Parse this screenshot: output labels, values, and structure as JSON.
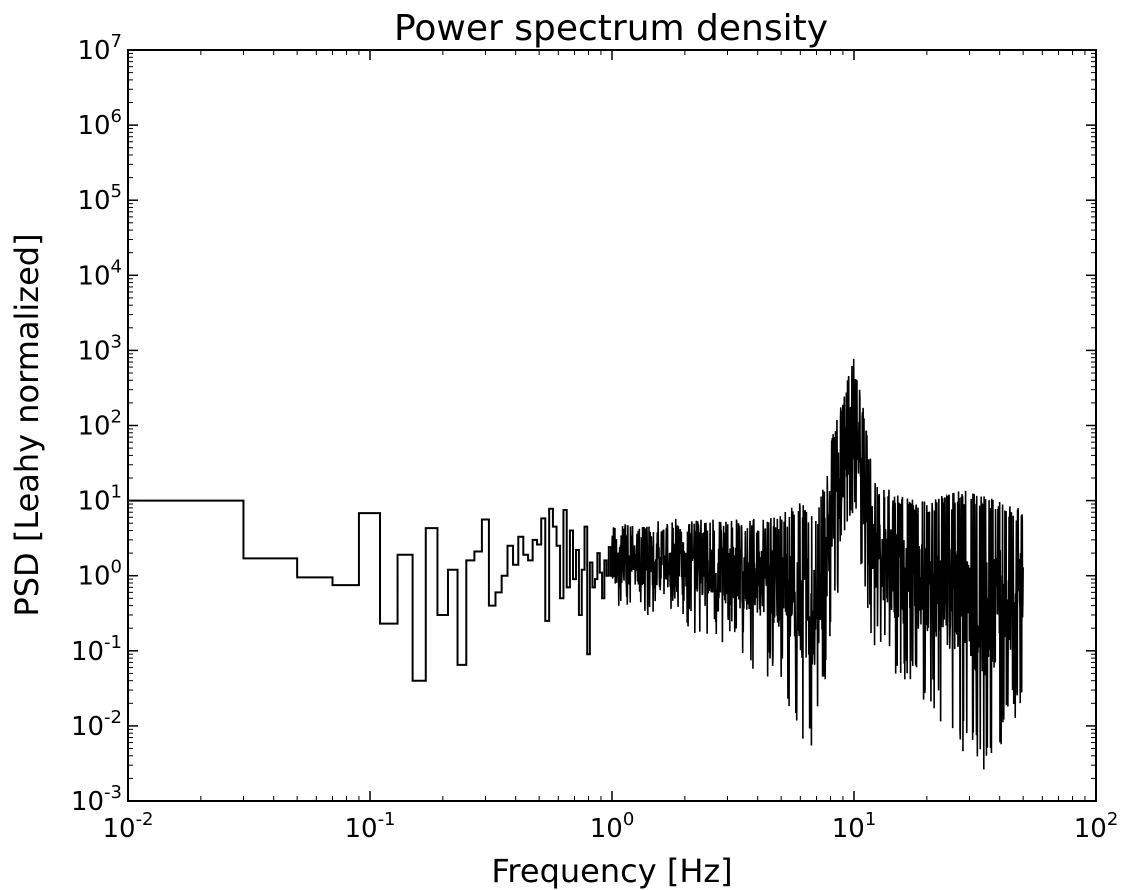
{
  "chart_data": {
    "type": "line",
    "style": "steps",
    "title": "Power spectrum density",
    "xlabel": "Frequency [Hz]",
    "ylabel": "PSD [Leahy normalized]",
    "xscale": "log",
    "yscale": "log",
    "xlim": [
      0.01,
      100
    ],
    "ylim": [
      0.001,
      10000000
    ],
    "grid": false,
    "line_color": "#000000",
    "xticks": [
      {
        "base": "10",
        "exp": "-2",
        "value": 0.01
      },
      {
        "base": "10",
        "exp": "-1",
        "value": 0.1
      },
      {
        "base": "10",
        "exp": "0",
        "value": 1
      },
      {
        "base": "10",
        "exp": "1",
        "value": 10
      },
      {
        "base": "10",
        "exp": "2",
        "value": 100
      }
    ],
    "yticks": [
      {
        "base": "10",
        "exp": "-3",
        "value": 0.001
      },
      {
        "base": "10",
        "exp": "-2",
        "value": 0.01
      },
      {
        "base": "10",
        "exp": "-1",
        "value": 0.1
      },
      {
        "base": "10",
        "exp": "0",
        "value": 1
      },
      {
        "base": "10",
        "exp": "1",
        "value": 10
      },
      {
        "base": "10",
        "exp": "2",
        "value": 100
      },
      {
        "base": "10",
        "exp": "3",
        "value": 1000
      },
      {
        "base": "10",
        "exp": "4",
        "value": 10000
      },
      {
        "base": "10",
        "exp": "5",
        "value": 100000
      },
      {
        "base": "10",
        "exp": "6",
        "value": 1000000
      },
      {
        "base": "10",
        "exp": "7",
        "value": 10000000
      }
    ],
    "series": [
      {
        "steps_low_freq": {
          "x": [
            0.01,
            0.03,
            0.05,
            0.07,
            0.09,
            0.11,
            0.13,
            0.15,
            0.17,
            0.19,
            0.21,
            0.23,
            0.25,
            0.27,
            0.29,
            0.31,
            0.33,
            0.35,
            0.37,
            0.39,
            0.41,
            0.43,
            0.45,
            0.47,
            0.49,
            0.51,
            0.53,
            0.55,
            0.57,
            0.59,
            0.61,
            0.63,
            0.65,
            0.67,
            0.69,
            0.71,
            0.73,
            0.75,
            0.77,
            0.79,
            0.81,
            0.83,
            0.85,
            0.87,
            0.89,
            0.91,
            0.93,
            0.95,
            0.97,
            0.99
          ],
          "y": [
            10,
            1.7,
            0.95,
            0.75,
            6.8,
            0.23,
            1.9,
            0.04,
            4.3,
            0.3,
            1.2,
            0.065,
            1.6,
            2.1,
            5.6,
            0.4,
            0.6,
            1.0,
            2.5,
            1.4,
            3.3,
            1.9,
            1.6,
            3.0,
            2.6,
            5.8,
            0.25,
            7.8,
            4.5,
            2.5,
            0.5,
            7.5,
            0.7,
            4.0,
            0.9,
            2.2,
            0.3,
            1.2,
            4.5,
            0.09,
            1.5,
            0.7,
            0.9,
            2.0,
            1.1,
            0.5,
            1.6,
            1.0,
            2.4,
            1.0
          ]
        },
        "high_freq_envelope": [
          {
            "f": 1.0,
            "upper": 4.5,
            "lower": 0.3
          },
          {
            "f": 2.0,
            "upper": 6.0,
            "lower": 0.2
          },
          {
            "f": 3.0,
            "upper": 5.5,
            "lower": 0.1
          },
          {
            "f": 5.0,
            "upper": 6.5,
            "lower": 0.03
          },
          {
            "f": 6.0,
            "upper": 10,
            "lower": 0.005
          },
          {
            "f": 7.0,
            "upper": 6.0,
            "lower": 0.005
          },
          {
            "f": 8.0,
            "upper": 60,
            "lower": 0.1
          },
          {
            "f": 9.0,
            "upper": 250,
            "lower": 2.0
          },
          {
            "f": 10.0,
            "upper": 800,
            "lower": 5.0
          },
          {
            "f": 11.0,
            "upper": 150,
            "lower": 0.5
          },
          {
            "f": 12.0,
            "upper": 20,
            "lower": 0.1
          },
          {
            "f": 15.0,
            "upper": 12,
            "lower": 0.03
          },
          {
            "f": 20.0,
            "upper": 10,
            "lower": 0.02
          },
          {
            "f": 30.0,
            "upper": 15,
            "lower": 0.003
          },
          {
            "f": 35.0,
            "upper": 12,
            "lower": 0.002
          },
          {
            "f": 50.0,
            "upper": 8,
            "lower": 0.02
          }
        ]
      }
    ]
  }
}
